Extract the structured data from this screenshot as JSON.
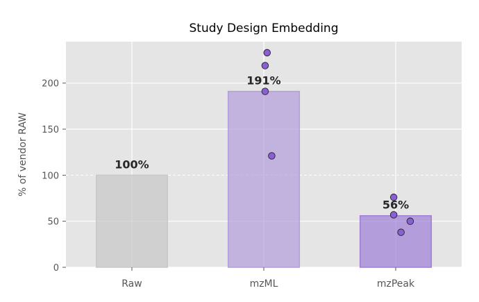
{
  "chart_data": {
    "type": "bar",
    "title": "Study Design Embedding",
    "xlabel": "",
    "ylabel": "% of vendor RAW",
    "categories": [
      "Raw",
      "mzML",
      "mzPeak"
    ],
    "values": [
      100,
      191,
      56
    ],
    "data_labels": [
      "100%",
      "191%",
      "56%"
    ],
    "bar_colors": [
      "#c8c8c8",
      "#b39ddb",
      "#9e7fd6"
    ],
    "points": [
      {
        "category": "mzML",
        "offset": 0.05,
        "value": 233
      },
      {
        "category": "mzML",
        "offset": 0.02,
        "value": 219
      },
      {
        "category": "mzML",
        "offset": 0.02,
        "value": 191
      },
      {
        "category": "mzML",
        "offset": 0.12,
        "value": 121
      },
      {
        "category": "mzPeak",
        "offset": -0.03,
        "value": 76
      },
      {
        "category": "mzPeak",
        "offset": -0.03,
        "value": 57
      },
      {
        "category": "mzPeak",
        "offset": 0.22,
        "value": 50
      },
      {
        "category": "mzPeak",
        "offset": 0.08,
        "value": 38
      }
    ],
    "point_color": "#8a5fd6",
    "ylim": [
      0,
      245
    ],
    "yticks": [
      0,
      50,
      100,
      150,
      200
    ],
    "reference_line": 100,
    "grid": true,
    "background": "#e5e5e5"
  }
}
